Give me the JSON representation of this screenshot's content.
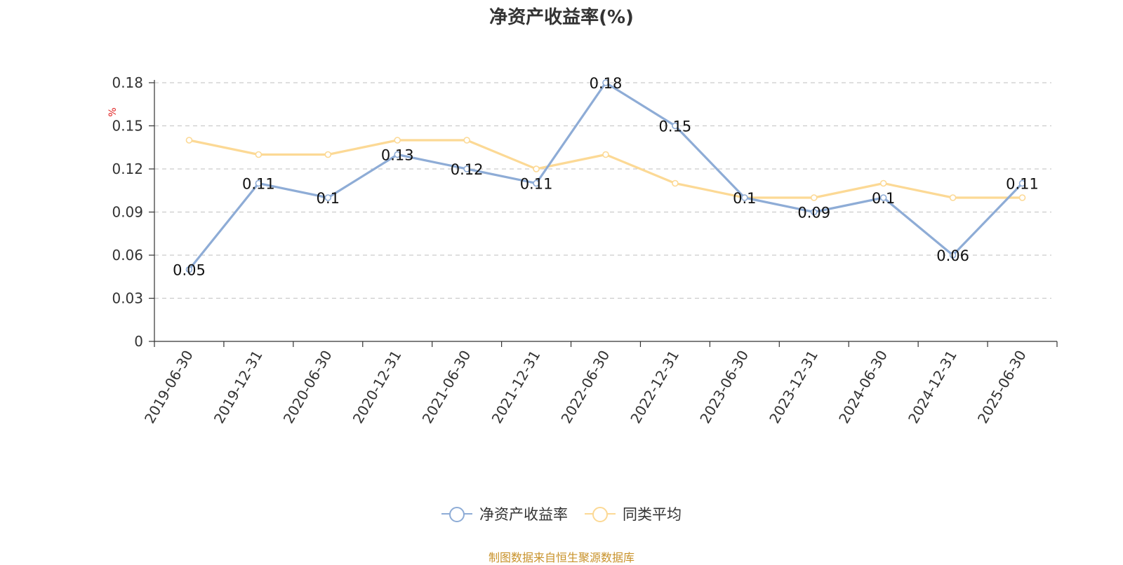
{
  "chart_data": {
    "type": "line",
    "title": "净资产收益率(%)",
    "ylabel": "%",
    "ylim": [
      0,
      0.18
    ],
    "yticks": [
      "0",
      "0.03",
      "0.06",
      "0.09",
      "0.12",
      "0.15",
      "0.18"
    ],
    "categories": [
      "2019-06-30",
      "2019-12-31",
      "2020-06-30",
      "2020-12-31",
      "2021-06-30",
      "2021-12-31",
      "2022-06-30",
      "2022-12-31",
      "2023-06-30",
      "2023-12-31",
      "2024-06-30",
      "2024-12-31",
      "2025-06-30"
    ],
    "series": [
      {
        "name": "净资产收益率",
        "color": "#8eacd6",
        "values": [
          0.05,
          0.11,
          0.1,
          0.13,
          0.12,
          0.11,
          0.18,
          0.15,
          0.1,
          0.09,
          0.1,
          0.06,
          0.11
        ],
        "labels": [
          "0.05",
          "0.11",
          "0.1",
          "0.13",
          "0.12",
          "0.11",
          "0.18",
          "0.15",
          "0.1",
          "0.09",
          "0.1",
          "0.06",
          "0.11"
        ]
      },
      {
        "name": "同类平均",
        "color": "#fcd995",
        "values": [
          0.14,
          0.13,
          0.13,
          0.14,
          0.14,
          0.12,
          0.13,
          0.11,
          0.1,
          0.1,
          0.11,
          0.1,
          0.1
        ]
      }
    ],
    "grid": "horizontal-dashed",
    "legend": "bottom-center"
  },
  "source": "制图数据来自恒生聚源数据库"
}
